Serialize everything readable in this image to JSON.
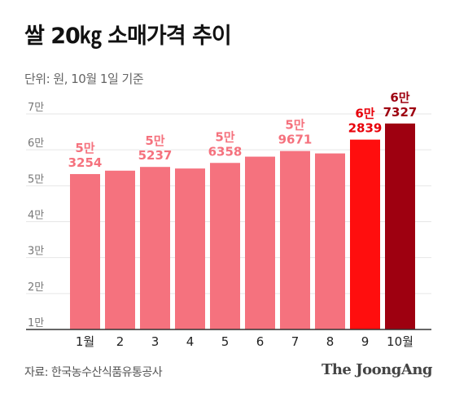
{
  "title": "쌀 20㎏ 소매가격 추이",
  "subtitle": "단위: 원, 10월 1일 기준",
  "source": "자료: 한국농수산식품유통공사",
  "brand": "The JoongAng",
  "colors": {
    "bar_default": "#f5727e",
    "bar_sep": "#ff0e0e",
    "bar_oct": "#9e0010",
    "label_default": "#f5727e",
    "label_sep": "#e8000a",
    "label_oct": "#9e0010"
  },
  "chart_data": {
    "type": "bar",
    "categories": [
      "1월",
      "2",
      "3",
      "4",
      "5",
      "6",
      "7",
      "8",
      "9",
      "10월"
    ],
    "values": [
      53254,
      54200,
      55237,
      54800,
      56358,
      58100,
      59671,
      59000,
      62839,
      67327
    ],
    "data_labels": [
      {
        "index": 0,
        "line1": "5만",
        "line2": "3254"
      },
      {
        "index": 2,
        "line1": "5만",
        "line2": "5237"
      },
      {
        "index": 4,
        "line1": "5만",
        "line2": "6358"
      },
      {
        "index": 6,
        "line1": "5만",
        "line2": "9671"
      },
      {
        "index": 8,
        "line1": "6만",
        "line2": "2839"
      },
      {
        "index": 9,
        "line1": "6만",
        "line2": "7327"
      }
    ],
    "yticks": [
      {
        "value": 10000,
        "label": "1만"
      },
      {
        "value": 20000,
        "label": "2만"
      },
      {
        "value": 30000,
        "label": "3만"
      },
      {
        "value": 40000,
        "label": "4만"
      },
      {
        "value": 50000,
        "label": "5만"
      },
      {
        "value": 60000,
        "label": "6만"
      },
      {
        "value": 70000,
        "label": "7만"
      }
    ],
    "ylim": [
      0,
      70000
    ],
    "grid": true,
    "xlabel": "",
    "ylabel": ""
  }
}
